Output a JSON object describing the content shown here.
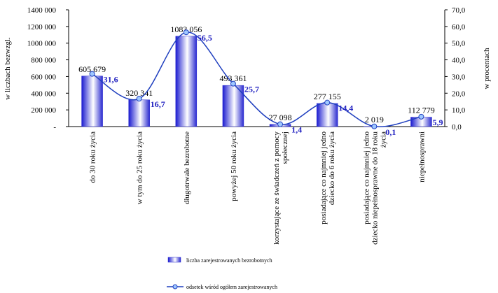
{
  "chart_data": {
    "type": "bar-line",
    "y_label": "w liczbach bezwzgl.",
    "y2_label": "w procentach",
    "categories": [
      "do 30 roku życia",
      "w tym do 25 roku życia",
      "długotrwale bezrobotne",
      "powyżej 50 roku życia",
      "korzystające ze świadczeń z pomocy społecznej",
      "posiadające co najmniej jedno dziecko do 6 roku życia",
      "posiadające co najmniej jedno dziecko niepełnosprawne do 18 roku życia",
      "niepełnosprawni"
    ],
    "series": [
      {
        "name": "liczba zarejestrowanych bezrobotnych",
        "type": "bar",
        "color": "#2a2ad0",
        "values": [
          605679,
          320341,
          1083056,
          493361,
          27098,
          277155,
          2019,
          112779
        ],
        "value_labels": [
          "605 679",
          "320 341",
          "1083 056",
          "493 361",
          "27 098",
          "277 155",
          "2 019",
          "112 779"
        ]
      },
      {
        "name": "odsetek wśród ogółem zarejestrowanych",
        "type": "line",
        "axis": "y2",
        "color": "#1f3fbf",
        "values": [
          31.6,
          16.7,
          56.5,
          25.7,
          1.4,
          14.4,
          0.1,
          5.9
        ],
        "value_labels": [
          "31,6",
          "16,7",
          "56,5",
          "25,7",
          "1,4",
          "14,4",
          "0,1",
          "5,9"
        ]
      }
    ],
    "ylim": [
      0,
      1400000
    ],
    "yticks": [
      {
        "value": 0,
        "label": "-"
      },
      {
        "value": 200000,
        "label": "200 000"
      },
      {
        "value": 400000,
        "label": "400 000"
      },
      {
        "value": 600000,
        "label": "600 000"
      },
      {
        "value": 800000,
        "label": "800 000"
      },
      {
        "value": 1000000,
        "label": "1000 000"
      },
      {
        "value": 1200000,
        "label": "1200 000"
      },
      {
        "value": 1400000,
        "label": "1400 000"
      }
    ],
    "y2lim": [
      0,
      70
    ],
    "y2ticks": [
      {
        "value": 0,
        "label": "0,0"
      },
      {
        "value": 10,
        "label": "10,0"
      },
      {
        "value": 20,
        "label": "20,0"
      },
      {
        "value": 30,
        "label": "30,0"
      },
      {
        "value": 40,
        "label": "40,0"
      },
      {
        "value": 50,
        "label": "50,0"
      },
      {
        "value": 60,
        "label": "60,0"
      },
      {
        "value": 70,
        "label": "70,0"
      }
    ]
  }
}
